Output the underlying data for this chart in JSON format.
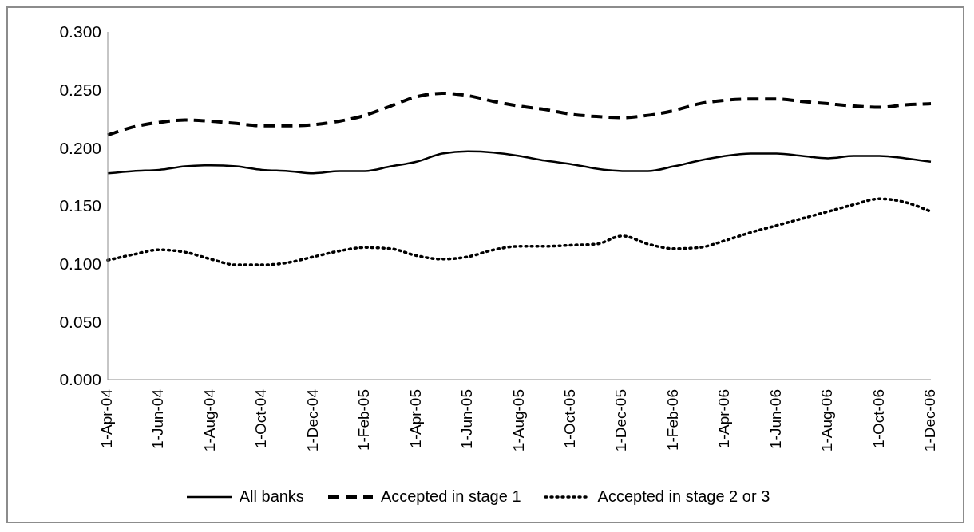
{
  "chart_data": {
    "type": "line",
    "categories": [
      "1-Apr-04",
      null,
      "1-Jun-04",
      null,
      "1-Aug-04",
      null,
      "1-Oct-04",
      null,
      "1-Dec-04",
      null,
      "1-Feb-05",
      null,
      "1-Apr-05",
      null,
      "1-Jun-05",
      null,
      "1-Aug-05",
      null,
      "1-Oct-05",
      null,
      "1-Dec-05",
      null,
      "1-Feb-06",
      null,
      "1-Apr-06",
      null,
      "1-Jun-06",
      null,
      "1-Aug-06",
      null,
      "1-Oct-06",
      null,
      "1-Dec-06"
    ],
    "series": [
      {
        "name": "All banks",
        "color": "#000000",
        "line_style": "solid",
        "values": [
          0.178,
          0.18,
          0.181,
          0.184,
          0.185,
          0.184,
          0.181,
          0.18,
          0.178,
          0.18,
          0.18,
          0.184,
          0.188,
          0.195,
          0.197,
          0.196,
          0.193,
          0.189,
          0.186,
          0.182,
          0.18,
          0.18,
          0.184,
          0.189,
          0.193,
          0.195,
          0.195,
          0.193,
          0.191,
          0.193,
          0.193,
          0.191,
          0.188
        ]
      },
      {
        "name": "Accepted in stage 1",
        "color": "#000000",
        "line_style": "dashed",
        "values": [
          0.211,
          0.218,
          0.222,
          0.224,
          0.223,
          0.221,
          0.219,
          0.219,
          0.22,
          0.223,
          0.228,
          0.236,
          0.244,
          0.247,
          0.245,
          0.24,
          0.236,
          0.233,
          0.229,
          0.227,
          0.226,
          0.228,
          0.232,
          0.238,
          0.241,
          0.242,
          0.242,
          0.24,
          0.238,
          0.236,
          0.235,
          0.237,
          0.238
        ]
      },
      {
        "name": "Accepted in stage 2 or 3",
        "color": "#000000",
        "line_style": "dotted",
        "values": [
          0.103,
          0.108,
          0.112,
          0.11,
          0.104,
          0.099,
          0.099,
          0.101,
          0.106,
          0.111,
          0.114,
          0.113,
          0.107,
          0.104,
          0.106,
          0.112,
          0.115,
          0.115,
          0.116,
          0.117,
          0.124,
          0.117,
          0.113,
          0.114,
          0.12,
          0.127,
          0.133,
          0.139,
          0.145,
          0.151,
          0.156,
          0.153,
          0.145
        ]
      }
    ],
    "ylim": [
      0,
      0.3
    ],
    "yticks": [
      {
        "value": 0,
        "label": "0.000"
      },
      {
        "value": 0.05,
        "label": "0.050"
      },
      {
        "value": 0.1,
        "label": "0.100"
      },
      {
        "value": 0.15,
        "label": "0.150"
      },
      {
        "value": 0.2,
        "label": "0.200"
      },
      {
        "value": 0.25,
        "label": "0.250"
      },
      {
        "value": 0.3,
        "label": "0.300"
      }
    ],
    "grid": false,
    "legend": "bottom",
    "marker": "none"
  }
}
